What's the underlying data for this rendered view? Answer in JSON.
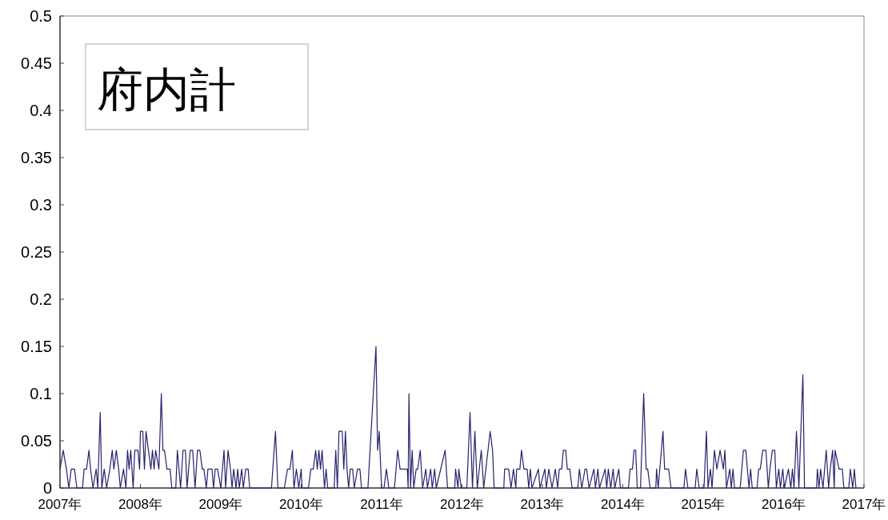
{
  "chart_data": {
    "type": "line",
    "title": "府内計",
    "grid": false,
    "marker": "none",
    "line_style": "solid",
    "xlim": [
      2007,
      2017
    ],
    "xticks": [
      {
        "value": 2007,
        "label": "2007年"
      },
      {
        "value": 2008,
        "label": "2008年"
      },
      {
        "value": 2009,
        "label": "2009年"
      },
      {
        "value": 2010,
        "label": "2010年"
      },
      {
        "value": 2011,
        "label": "2011年"
      },
      {
        "value": 2012,
        "label": "2012年"
      },
      {
        "value": 2013,
        "label": "2013年"
      },
      {
        "value": 2014,
        "label": "2014年"
      },
      {
        "value": 2015,
        "label": "2015年"
      },
      {
        "value": 2016,
        "label": "2016年"
      },
      {
        "value": 2017,
        "label": "2017年"
      }
    ],
    "ylim": [
      0,
      0.5
    ],
    "yticks": [
      0,
      0.05,
      0.1,
      0.15,
      0.2,
      0.25,
      0.3,
      0.35,
      0.4,
      0.45,
      0.5
    ],
    "series": [
      {
        "color": "#24246e",
        "x": [
          2007.0,
          2007.04,
          2007.08,
          2007.11,
          2007.14,
          2007.18,
          2007.21,
          2007.28,
          2007.3,
          2007.33,
          2007.36,
          2007.38,
          2007.41,
          2007.45,
          2007.47,
          2007.5,
          2007.52,
          2007.55,
          2007.58,
          2007.62,
          2007.65,
          2007.67,
          2007.7,
          2007.73,
          2007.75,
          2007.79,
          2007.82,
          2007.84,
          2007.86,
          2007.88,
          2007.91,
          2007.93,
          2007.97,
          2007.99,
          2008.0,
          2008.03,
          2008.05,
          2008.07,
          2008.1,
          2008.13,
          2008.15,
          2008.17,
          2008.19,
          2008.23,
          2008.26,
          2008.28,
          2008.3,
          2008.33,
          2008.37,
          2008.39,
          2008.44,
          2008.46,
          2008.48,
          2008.5,
          2008.53,
          2008.56,
          2008.58,
          2008.62,
          2008.65,
          2008.68,
          2008.71,
          2008.74,
          2008.77,
          2008.79,
          2008.82,
          2008.84,
          2008.89,
          2008.91,
          2008.93,
          2008.96,
          2009.0,
          2009.04,
          2009.06,
          2009.09,
          2009.12,
          2009.14,
          2009.16,
          2009.19,
          2009.21,
          2009.23,
          2009.26,
          2009.28,
          2009.31,
          2009.34,
          2009.36,
          2009.39,
          2009.63,
          2009.68,
          2009.71,
          2009.79,
          2009.83,
          2009.86,
          2009.89,
          2009.91,
          2009.94,
          2009.97,
          2010.0,
          2010.01,
          2010.09,
          2010.12,
          2010.15,
          2010.18,
          2010.2,
          2010.22,
          2010.24,
          2010.26,
          2010.29,
          2010.31,
          2010.33,
          2010.41,
          2010.43,
          2010.45,
          2010.47,
          2010.51,
          2010.53,
          2010.55,
          2010.57,
          2010.59,
          2010.61,
          2010.64,
          2010.66,
          2010.7,
          2010.73,
          2010.75,
          2010.83,
          2010.93,
          2010.95,
          2010.97,
          2011.0,
          2011.03,
          2011.06,
          2011.09,
          2011.16,
          2011.2,
          2011.23,
          2011.28,
          2011.32,
          2011.33,
          2011.34,
          2011.36,
          2011.38,
          2011.4,
          2011.43,
          2011.45,
          2011.48,
          2011.51,
          2011.55,
          2011.57,
          2011.61,
          2011.63,
          2011.66,
          2011.68,
          2011.79,
          2011.82,
          2011.91,
          2011.92,
          2011.95,
          2011.96,
          2011.99,
          2012.06,
          2012.1,
          2012.13,
          2012.16,
          2012.19,
          2012.24,
          2012.27,
          2012.35,
          2012.38,
          2012.4,
          2012.52,
          2012.53,
          2012.58,
          2012.61,
          2012.64,
          2012.67,
          2012.68,
          2012.72,
          2012.74,
          2012.77,
          2012.81,
          2012.83,
          2012.85,
          2012.87,
          2012.95,
          2012.97,
          2013.03,
          2013.05,
          2013.08,
          2013.12,
          2013.16,
          2013.19,
          2013.21,
          2013.24,
          2013.26,
          2013.29,
          2013.31,
          2013.34,
          2013.37,
          2013.44,
          2013.46,
          2013.49,
          2013.53,
          2013.55,
          2013.58,
          2013.64,
          2013.66,
          2013.69,
          2013.71,
          2013.78,
          2013.8,
          2013.82,
          2013.85,
          2013.88,
          2013.9,
          2013.95,
          2013.97,
          2014.07,
          2014.09,
          2014.12,
          2014.14,
          2014.16,
          2014.18,
          2014.22,
          2014.26,
          2014.29,
          2014.31,
          2014.34,
          2014.41,
          2014.42,
          2014.44,
          2014.5,
          2014.52,
          2014.57,
          2014.6,
          2014.76,
          2014.78,
          2014.81,
          2014.9,
          2014.92,
          2014.95,
          2015.01,
          2015.04,
          2015.06,
          2015.09,
          2015.11,
          2015.14,
          2015.17,
          2015.21,
          2015.25,
          2015.27,
          2015.29,
          2015.33,
          2015.35,
          2015.37,
          2015.39,
          2015.46,
          2015.5,
          2015.53,
          2015.57,
          2015.59,
          2015.61,
          2015.67,
          2015.69,
          2015.71,
          2015.74,
          2015.78,
          2015.81,
          2015.83,
          2015.86,
          2015.89,
          2015.91,
          2015.94,
          2015.96,
          2015.99,
          2016.01,
          2016.06,
          2016.09,
          2016.11,
          2016.13,
          2016.16,
          2016.19,
          2016.24,
          2016.26,
          2016.41,
          2016.42,
          2016.44,
          2016.46,
          2016.49,
          2016.53,
          2016.56,
          2016.58,
          2016.61,
          2016.63,
          2016.64,
          2016.69,
          2016.73,
          2016.75,
          2016.81,
          2016.83,
          2016.86,
          2016.88,
          2016.9
        ],
        "values": [
          0.02,
          0.04,
          0.02,
          0,
          0.02,
          0.02,
          0,
          0,
          0.02,
          0.02,
          0.04,
          0.02,
          0,
          0.02,
          0,
          0.08,
          0,
          0.02,
          0,
          0.02,
          0.04,
          0.02,
          0.04,
          0.02,
          0,
          0.02,
          0,
          0.04,
          0.02,
          0.04,
          0,
          0.04,
          0.04,
          0.02,
          0.06,
          0.06,
          0.02,
          0.06,
          0.04,
          0.02,
          0.04,
          0.02,
          0.04,
          0.02,
          0.1,
          0.04,
          0.04,
          0.02,
          0.02,
          0,
          0,
          0.04,
          0.02,
          0,
          0.04,
          0.04,
          0,
          0.04,
          0.04,
          0,
          0.04,
          0.04,
          0.02,
          0.02,
          0,
          0.02,
          0.02,
          0,
          0.02,
          0.02,
          0,
          0.04,
          0,
          0.04,
          0.02,
          0,
          0.02,
          0,
          0.02,
          0,
          0.02,
          0,
          0.02,
          0.02,
          0,
          0,
          0,
          0.06,
          0,
          0,
          0.02,
          0.02,
          0.04,
          0,
          0.02,
          0,
          0.02,
          0,
          0,
          0.02,
          0.02,
          0.04,
          0.02,
          0.04,
          0.02,
          0.04,
          0,
          0.02,
          0,
          0,
          0.04,
          0,
          0.06,
          0.06,
          0.02,
          0.06,
          0.02,
          0,
          0.02,
          0.02,
          0,
          0.02,
          0.02,
          0,
          0,
          0.15,
          0.04,
          0.06,
          0,
          0,
          0.02,
          0,
          0,
          0.04,
          0.02,
          0.02,
          0.02,
          0,
          0.1,
          0,
          0.04,
          0,
          0.02,
          0.02,
          0.04,
          0,
          0.02,
          0,
          0.02,
          0,
          0.02,
          0,
          0.04,
          0,
          0,
          0.02,
          0,
          0.02,
          0,
          0,
          0.08,
          0,
          0.06,
          0,
          0.04,
          0,
          0.06,
          0.04,
          0,
          0,
          0.02,
          0.02,
          0,
          0.02,
          0,
          0.02,
          0.02,
          0.04,
          0.02,
          0.02,
          0,
          0.02,
          0,
          0.02,
          0,
          0.02,
          0,
          0.02,
          0,
          0.02,
          0,
          0.02,
          0.02,
          0.04,
          0.04,
          0.02,
          0.02,
          0,
          0,
          0.02,
          0,
          0.02,
          0.02,
          0,
          0.02,
          0,
          0.02,
          0,
          0.02,
          0,
          0.02,
          0,
          0.02,
          0,
          0.02,
          0,
          0,
          0.02,
          0.02,
          0.04,
          0.04,
          0,
          0,
          0.1,
          0.02,
          0.02,
          0,
          0,
          0.02,
          0,
          0.06,
          0.02,
          0.02,
          0,
          0,
          0.02,
          0,
          0,
          0.02,
          0,
          0,
          0.06,
          0,
          0.02,
          0,
          0.04,
          0.02,
          0.04,
          0.02,
          0.04,
          0,
          0.02,
          0,
          0.02,
          0,
          0,
          0.04,
          0.04,
          0,
          0.02,
          0,
          0,
          0.02,
          0.02,
          0.04,
          0.04,
          0,
          0.02,
          0.04,
          0.04,
          0,
          0.02,
          0,
          0.02,
          0,
          0.02,
          0,
          0.02,
          0,
          0.06,
          0,
          0.12,
          0,
          0,
          0.02,
          0,
          0.02,
          0,
          0.04,
          0,
          0.02,
          0.04,
          0,
          0.04,
          0.02,
          0.02,
          0,
          0,
          0.02,
          0,
          0.02,
          0
        ]
      }
    ]
  }
}
